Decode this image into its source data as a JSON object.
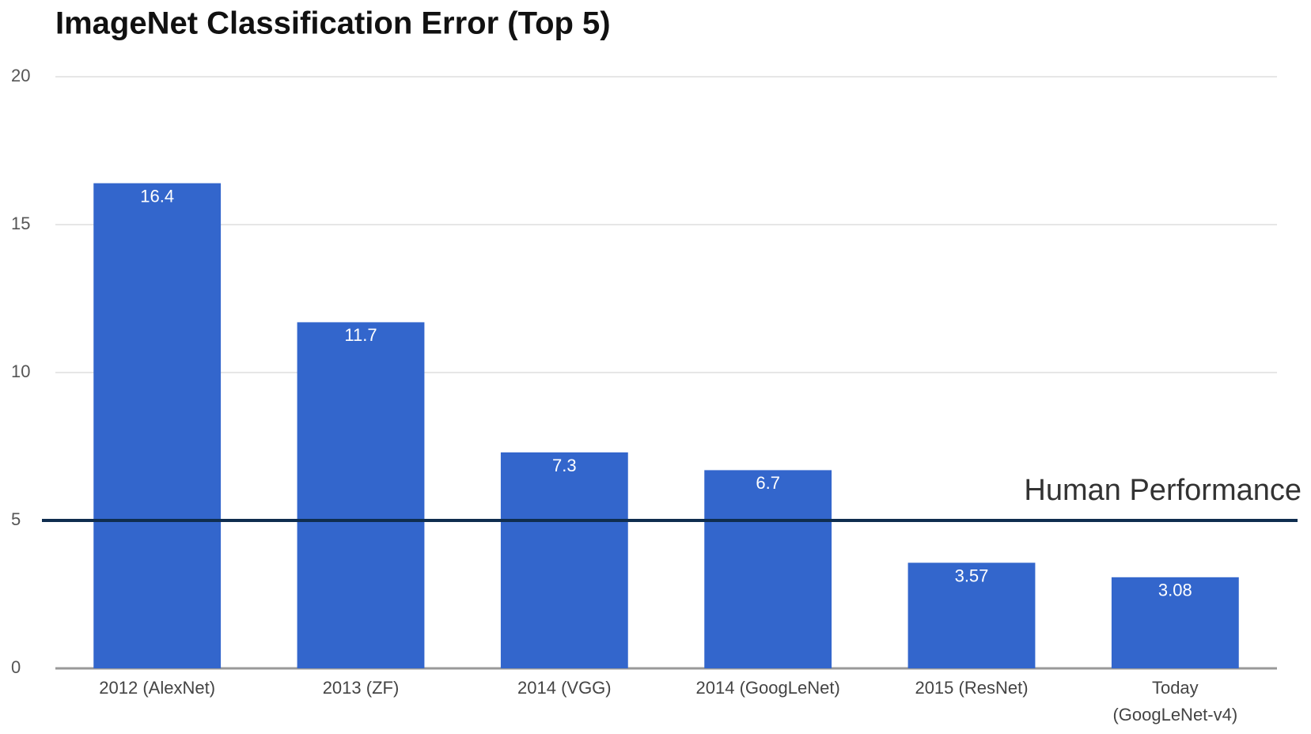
{
  "chart_data": {
    "type": "bar",
    "title": "ImageNet Classification Error (Top 5)",
    "categories": [
      "2012 (AlexNet)",
      "2013 (ZF)",
      "2014 (VGG)",
      "2014 (GoogLeNet)",
      "2015 (ResNet)",
      "Today\n(GoogLeNet-v4)"
    ],
    "values": [
      16.4,
      11.7,
      7.3,
      6.7,
      3.57,
      3.08
    ],
    "color": "#3366cc",
    "ylim": [
      0,
      20
    ],
    "yticks": [
      0,
      5,
      10,
      15,
      20
    ],
    "grid": true,
    "reference_line": {
      "value": 5,
      "label": "Human Performance",
      "color": "#0f2d4f"
    }
  }
}
